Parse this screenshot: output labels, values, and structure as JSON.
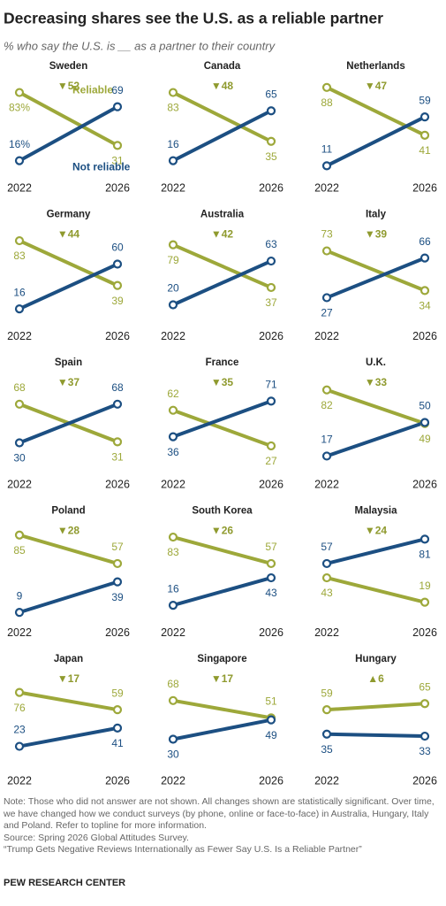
{
  "title": "Decreasing shares see the U.S. as a reliable partner",
  "subtitle": "% who say the U.S. is __ as a partner to their country",
  "chart_data": [
    {
      "type": "line",
      "title": "Sweden",
      "annotation": "▼52",
      "x": [
        "2022",
        "2026"
      ],
      "ylim": [
        0,
        100
      ],
      "series": [
        {
          "name": "Reliable",
          "color": "#9da83a",
          "values": [
            83,
            31
          ],
          "value_labels": [
            "83%",
            "31"
          ]
        },
        {
          "name": "Not reliable",
          "color": "#1c4f82",
          "values": [
            16,
            69
          ],
          "value_labels": [
            "16%",
            "69"
          ]
        }
      ]
    },
    {
      "type": "line",
      "title": "Canada",
      "annotation": "▼48",
      "x": [
        "2022",
        "2026"
      ],
      "ylim": [
        0,
        100
      ],
      "series": [
        {
          "color": "#9da83a",
          "values": [
            83,
            35
          ]
        },
        {
          "color": "#1c4f82",
          "values": [
            16,
            65
          ]
        }
      ]
    },
    {
      "type": "line",
      "title": "Netherlands",
      "annotation": "▼47",
      "x": [
        "2022",
        "2026"
      ],
      "ylim": [
        0,
        100
      ],
      "series": [
        {
          "color": "#9da83a",
          "values": [
            88,
            41
          ]
        },
        {
          "color": "#1c4f82",
          "values": [
            11,
            59
          ]
        }
      ]
    },
    {
      "type": "line",
      "title": "Germany",
      "annotation": "▼44",
      "x": [
        "2022",
        "2026"
      ],
      "ylim": [
        0,
        100
      ],
      "series": [
        {
          "color": "#9da83a",
          "values": [
            83,
            39
          ]
        },
        {
          "color": "#1c4f82",
          "values": [
            16,
            60
          ]
        }
      ]
    },
    {
      "type": "line",
      "title": "Australia",
      "annotation": "▼42",
      "x": [
        "2022",
        "2026"
      ],
      "ylim": [
        0,
        100
      ],
      "series": [
        {
          "color": "#9da83a",
          "values": [
            79,
            37
          ]
        },
        {
          "color": "#1c4f82",
          "values": [
            20,
            63
          ]
        }
      ]
    },
    {
      "type": "line",
      "title": "Italy",
      "annotation": "▼39",
      "x": [
        "2022",
        "2026"
      ],
      "ylim": [
        0,
        100
      ],
      "series": [
        {
          "color": "#9da83a",
          "values": [
            73,
            34
          ]
        },
        {
          "color": "#1c4f82",
          "values": [
            27,
            66
          ]
        }
      ]
    },
    {
      "type": "line",
      "title": "Spain",
      "annotation": "▼37",
      "x": [
        "2022",
        "2026"
      ],
      "ylim": [
        0,
        100
      ],
      "series": [
        {
          "color": "#9da83a",
          "values": [
            68,
            31
          ]
        },
        {
          "color": "#1c4f82",
          "values": [
            30,
            68
          ]
        }
      ]
    },
    {
      "type": "line",
      "title": "France",
      "annotation": "▼35",
      "x": [
        "2022",
        "2026"
      ],
      "ylim": [
        0,
        100
      ],
      "series": [
        {
          "color": "#9da83a",
          "values": [
            62,
            27
          ]
        },
        {
          "color": "#1c4f82",
          "values": [
            36,
            71
          ]
        }
      ]
    },
    {
      "type": "line",
      "title": "U.K.",
      "annotation": "▼33",
      "x": [
        "2022",
        "2026"
      ],
      "ylim": [
        0,
        100
      ],
      "series": [
        {
          "color": "#9da83a",
          "values": [
            82,
            49
          ]
        },
        {
          "color": "#1c4f82",
          "values": [
            17,
            50
          ]
        }
      ]
    },
    {
      "type": "line",
      "title": "Poland",
      "annotation": "▼28",
      "x": [
        "2022",
        "2026"
      ],
      "ylim": [
        0,
        100
      ],
      "series": [
        {
          "color": "#9da83a",
          "values": [
            85,
            57
          ]
        },
        {
          "color": "#1c4f82",
          "values": [
            9,
            39
          ]
        }
      ]
    },
    {
      "type": "line",
      "title": "South Korea",
      "annotation": "▼26",
      "x": [
        "2022",
        "2026"
      ],
      "ylim": [
        0,
        100
      ],
      "series": [
        {
          "color": "#9da83a",
          "values": [
            83,
            57
          ]
        },
        {
          "color": "#1c4f82",
          "values": [
            16,
            43
          ]
        }
      ]
    },
    {
      "type": "line",
      "title": "Malaysia",
      "annotation": "▼24",
      "x": [
        "2022",
        "2026"
      ],
      "ylim": [
        0,
        100
      ],
      "series": [
        {
          "color": "#9da83a",
          "values": [
            43,
            19
          ]
        },
        {
          "color": "#1c4f82",
          "values": [
            57,
            81
          ]
        }
      ]
    },
    {
      "type": "line",
      "title": "Japan",
      "annotation": "▼17",
      "x": [
        "2022",
        "2026"
      ],
      "ylim": [
        0,
        100
      ],
      "series": [
        {
          "color": "#9da83a",
          "values": [
            76,
            59
          ]
        },
        {
          "color": "#1c4f82",
          "values": [
            23,
            41
          ]
        }
      ]
    },
    {
      "type": "line",
      "title": "Singapore",
      "annotation": "▼17",
      "x": [
        "2022",
        "2026"
      ],
      "ylim": [
        0,
        100
      ],
      "series": [
        {
          "color": "#9da83a",
          "values": [
            68,
            51
          ]
        },
        {
          "color": "#1c4f82",
          "values": [
            30,
            49
          ]
        }
      ]
    },
    {
      "type": "line",
      "title": "Hungary",
      "annotation": "▲6",
      "x": [
        "2022",
        "2026"
      ],
      "ylim": [
        0,
        100
      ],
      "series": [
        {
          "color": "#9da83a",
          "values": [
            59,
            65
          ]
        },
        {
          "color": "#1c4f82",
          "values": [
            35,
            33
          ]
        }
      ]
    }
  ],
  "note": "Note: Those who did not answer are not shown. All changes shown are statistically significant. Over time, we have changed how we conduct surveys (by phone, online or face-to-face) in Australia, Hungary, Italy and Poland. Refer to topline for more information.",
  "source": "Source: Spring 2026 Global Attitudes Survey.",
  "report": "“Trump Gets Negative Reviews Internationally as Fewer Say U.S. Is a Reliable Partner”",
  "footer": "PEW RESEARCH CENTER"
}
